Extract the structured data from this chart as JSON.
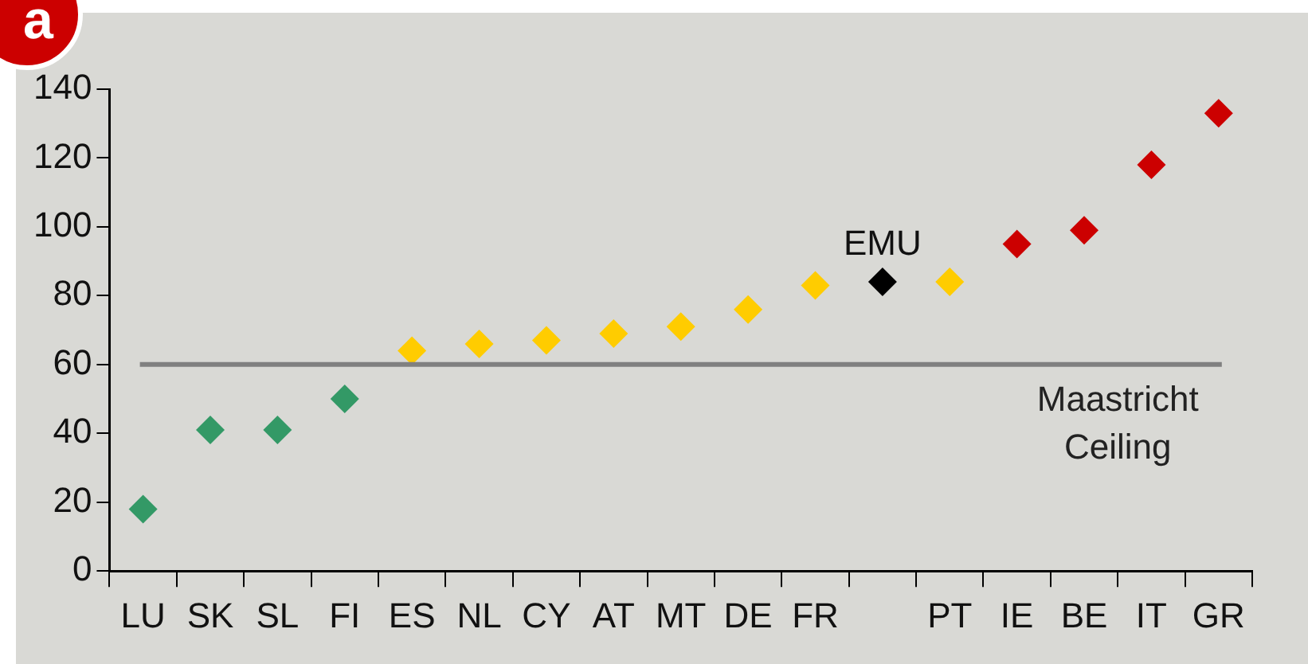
{
  "chart_data": {
    "type": "scatter",
    "categories": [
      "LU",
      "SK",
      "SL",
      "FI",
      "ES",
      "NL",
      "CY",
      "AT",
      "MT",
      "DE",
      "FR",
      null,
      "PT",
      "IE",
      "BE",
      "IT",
      "GR"
    ],
    "values": [
      18,
      41,
      41,
      50,
      64,
      66,
      67,
      69,
      71,
      76,
      83,
      84,
      84,
      95,
      99,
      118,
      133
    ],
    "colors": [
      "#339966",
      "#339966",
      "#339966",
      "#339966",
      "#ffcc00",
      "#ffcc00",
      "#ffcc00",
      "#ffcc00",
      "#ffcc00",
      "#ffcc00",
      "#ffcc00",
      "#000000",
      "#ffcc00",
      "#cc0000",
      "#cc0000",
      "#cc0000",
      "#cc0000"
    ],
    "marker": "diamond",
    "ylim": [
      0,
      140
    ],
    "yticks": [
      0,
      20,
      40,
      60,
      80,
      100,
      120,
      140
    ],
    "grid": false,
    "legend": false,
    "ref_lines": [
      {
        "axis": "y",
        "value": 60,
        "label": "Maastricht Ceiling",
        "color": "#808080"
      }
    ],
    "annotations": [
      "a",
      {
        "text": "EMU",
        "y": 84
      }
    ]
  }
}
